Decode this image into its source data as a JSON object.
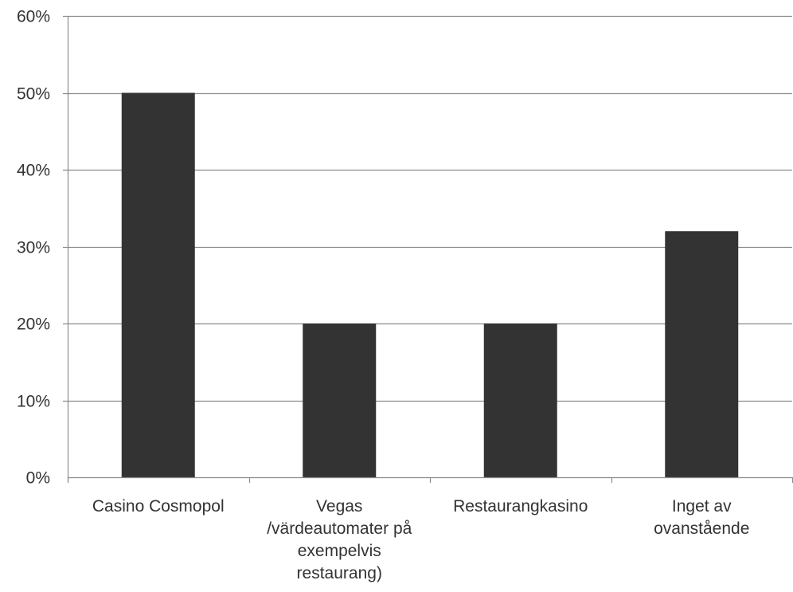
{
  "chart_data": {
    "type": "bar",
    "categories": [
      [
        "Casino Cosmopol"
      ],
      [
        "Vegas",
        "/värdeautomater på",
        "exempelvis",
        "restaurang)"
      ],
      [
        "Restaurangkasino"
      ],
      [
        "Inget av",
        "ovanstående"
      ]
    ],
    "values": [
      0.5,
      0.2,
      0.2,
      0.32
    ],
    "ylim": [
      0,
      0.6
    ],
    "yticks": [
      0,
      0.1,
      0.2,
      0.3,
      0.4,
      0.5,
      0.6
    ],
    "ytick_labels": [
      "0%",
      "10%",
      "20%",
      "30%",
      "40%",
      "50%",
      "60%"
    ],
    "grid": true,
    "bar_color": "#333333",
    "grid_color": "#8c8c8c"
  }
}
